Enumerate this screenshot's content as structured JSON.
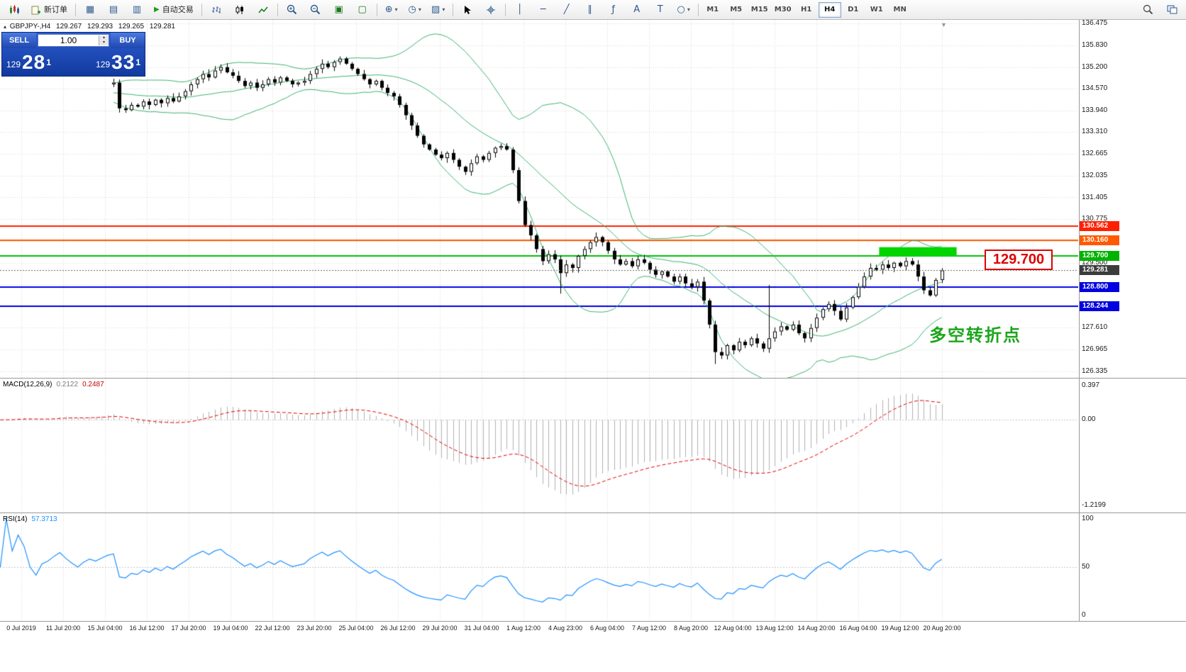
{
  "toolbar": {
    "new_order_label": "新订单",
    "auto_trading_label": "自动交易",
    "timeframes": [
      "M1",
      "M5",
      "M15",
      "M30",
      "H1",
      "H4",
      "D1",
      "W1",
      "MN"
    ],
    "active_timeframe": "H4"
  },
  "icons": {
    "window": "▦",
    "profiles": "▤",
    "data_window": "▥",
    "tile": "▣",
    "cascade": "▢",
    "indicators": "⊕",
    "periods": "◷",
    "templates": "▨",
    "dropdown": "▾",
    "vline": "│",
    "hline": "─",
    "trendline": "╱",
    "channel": "∥",
    "fibonacci": "ƒ",
    "text": "A",
    "label": "T",
    "shapes": "○",
    "play": "▶",
    "spin_up": "▴",
    "spin_down": "▾",
    "shift_marker": "▼",
    "symbol_marker": "▴"
  },
  "symbol_header": {
    "symbol": "GBPJPY-,H4",
    "open": "129.267",
    "high": "129.293",
    "low": "129.265",
    "close": "129.281"
  },
  "trade_panel": {
    "sell_label": "SELL",
    "buy_label": "BUY",
    "volume": "1.00",
    "sell_price": {
      "prefix": "129",
      "pips": "28",
      "sup": "1"
    },
    "buy_price": {
      "prefix": "129",
      "pips": "33",
      "sup": "1"
    }
  },
  "annotations": {
    "level_box": "129.700",
    "turning_point": "多空转折点"
  },
  "price_scale": {
    "labels": [
      {
        "text": "136.475",
        "price": 136.475
      },
      {
        "text": "135.830",
        "price": 135.83
      },
      {
        "text": "135.200",
        "price": 135.2
      },
      {
        "text": "134.570",
        "price": 134.57
      },
      {
        "text": "133.940",
        "price": 133.94
      },
      {
        "text": "133.310",
        "price": 133.31
      },
      {
        "text": "132.665",
        "price": 132.665
      },
      {
        "text": "132.035",
        "price": 132.035
      },
      {
        "text": "131.405",
        "price": 131.405
      },
      {
        "text": "130.775",
        "price": 130.775
      },
      {
        "text": "129.500",
        "price": 129.5
      },
      {
        "text": "127.610",
        "price": 127.61
      },
      {
        "text": "126.965",
        "price": 126.965
      },
      {
        "text": "126.335",
        "price": 126.335
      }
    ],
    "badges": [
      {
        "text": "130.562",
        "price": 130.562,
        "color": "#ff2000"
      },
      {
        "text": "130.160",
        "price": 130.16,
        "color": "#ff5a00"
      },
      {
        "text": "129.700",
        "price": 129.7,
        "color": "#00b300"
      },
      {
        "text": "129.281",
        "price": 129.281,
        "color": "#3c3c3c"
      },
      {
        "text": "128.800",
        "price": 128.8,
        "color": "#0000e0"
      },
      {
        "text": "128.244",
        "price": 128.244,
        "color": "#0000e0"
      }
    ]
  },
  "macd_panel": {
    "label": "MACD(12,26,9)",
    "value_main": "0.2122",
    "value_signal": "0.2487",
    "scale_max": "0.397",
    "scale_zero": "0.00",
    "scale_min": "-1.2199"
  },
  "rsi_panel": {
    "label": "RSI(14)",
    "value": "57.3713",
    "scale_max": "100",
    "scale_mid": "50",
    "scale_min": "0"
  },
  "time_axis": {
    "labels": [
      "0 Jul 2019",
      "11 Jul 20:00",
      "15 Jul 04:00",
      "16 Jul 12:00",
      "17 Jul 20:00",
      "19 Jul 04:00",
      "22 Jul 12:00",
      "23 Jul 20:00",
      "25 Jul 04:00",
      "26 Jul 12:00",
      "29 Jul 20:00",
      "31 Jul 04:00",
      "1 Aug 12:00",
      "4 Aug 23:00",
      "6 Aug 04:00",
      "7 Aug 12:00",
      "8 Aug 20:00",
      "12 Aug 04:00",
      "13 Aug 12:00",
      "14 Aug 20:00",
      "16 Aug 04:00",
      "19 Aug 12:00",
      "20 Aug 20:00"
    ]
  },
  "chart_data": {
    "type": "candlestick",
    "symbol": "GBPJPY",
    "timeframe": "H4",
    "ylim": [
      126.335,
      136.475
    ],
    "visible_from": 19,
    "closes": [
      134.3,
      134.4,
      134.35,
      134.5,
      134.45,
      134.3,
      134.2,
      134.35,
      134.4,
      134.5,
      134.6,
      134.5,
      134.4,
      134.3,
      134.45,
      134.55,
      134.5,
      134.6,
      134.7,
      134.75,
      134.0,
      133.95,
      134.1,
      134.05,
      134.2,
      134.1,
      134.25,
      134.15,
      134.3,
      134.2,
      134.35,
      134.5,
      134.7,
      134.85,
      135.0,
      134.9,
      135.1,
      135.2,
      135.05,
      134.95,
      134.8,
      134.65,
      134.75,
      134.6,
      134.7,
      134.85,
      134.75,
      134.9,
      134.8,
      134.7,
      134.75,
      134.8,
      135.0,
      135.15,
      135.3,
      135.2,
      135.35,
      135.45,
      135.3,
      135.15,
      135.0,
      134.85,
      134.7,
      134.8,
      134.6,
      134.45,
      134.35,
      134.1,
      133.8,
      133.5,
      133.2,
      132.95,
      132.8,
      132.65,
      132.55,
      132.7,
      132.5,
      132.3,
      132.15,
      132.4,
      132.6,
      132.5,
      132.7,
      132.85,
      132.9,
      132.8,
      132.2,
      131.3,
      130.6,
      130.3,
      129.9,
      129.55,
      129.75,
      129.6,
      129.2,
      129.45,
      129.35,
      129.7,
      129.9,
      130.1,
      130.25,
      130.1,
      129.85,
      129.6,
      129.45,
      129.55,
      129.4,
      129.6,
      129.5,
      129.3,
      129.15,
      129.25,
      129.1,
      128.95,
      129.1,
      128.9,
      128.8,
      128.95,
      128.4,
      127.7,
      126.9,
      126.8,
      127.1,
      126.95,
      127.2,
      127.1,
      127.3,
      127.15,
      127.0,
      127.3,
      127.5,
      127.65,
      127.55,
      127.7,
      127.45,
      127.3,
      127.6,
      127.9,
      128.15,
      128.3,
      128.1,
      127.85,
      128.2,
      128.5,
      128.8,
      129.1,
      129.35,
      129.3,
      129.45,
      129.35,
      129.5,
      129.4,
      129.55,
      129.45,
      129.1,
      128.7,
      128.55,
      129.0,
      129.281
    ],
    "wick_overrides": {
      "94": {
        "low": 128.6
      },
      "120": {
        "low": 126.55
      },
      "129": {
        "high": 128.85
      }
    },
    "price_gridlines": [
      136.475,
      135.83,
      135.2,
      134.57,
      133.94,
      133.31,
      132.665,
      132.035,
      131.405,
      130.775,
      130.145,
      129.5,
      128.87,
      128.24,
      127.61,
      126.965,
      126.335
    ],
    "overlays": {
      "bollinger": {
        "period": 20,
        "deviation": 2,
        "color": "#3CB371"
      },
      "hlines": [
        {
          "price": 130.562,
          "color": "#ff2000",
          "width": 2
        },
        {
          "price": 130.16,
          "color": "#ff5a00",
          "width": 2
        },
        {
          "price": 129.7,
          "color": "#00c000",
          "width": 2
        },
        {
          "price": 128.8,
          "color": "#0000e0",
          "width": 2
        },
        {
          "price": 128.244,
          "color": "#0000e0",
          "width": 2
        }
      ],
      "rect": {
        "from_index": 147.5,
        "to_index": 160.5,
        "price_top": 129.955,
        "price_bottom": 129.7,
        "color": "#00d500"
      },
      "current_price": 129.281
    },
    "indicators": {
      "macd": {
        "fast": 12,
        "slow": 26,
        "signal": 9,
        "histogram_color": "#b0b0b0",
        "signal_color": "#e00000"
      },
      "rsi": {
        "period": 14,
        "color": "#1e90ff"
      }
    }
  }
}
